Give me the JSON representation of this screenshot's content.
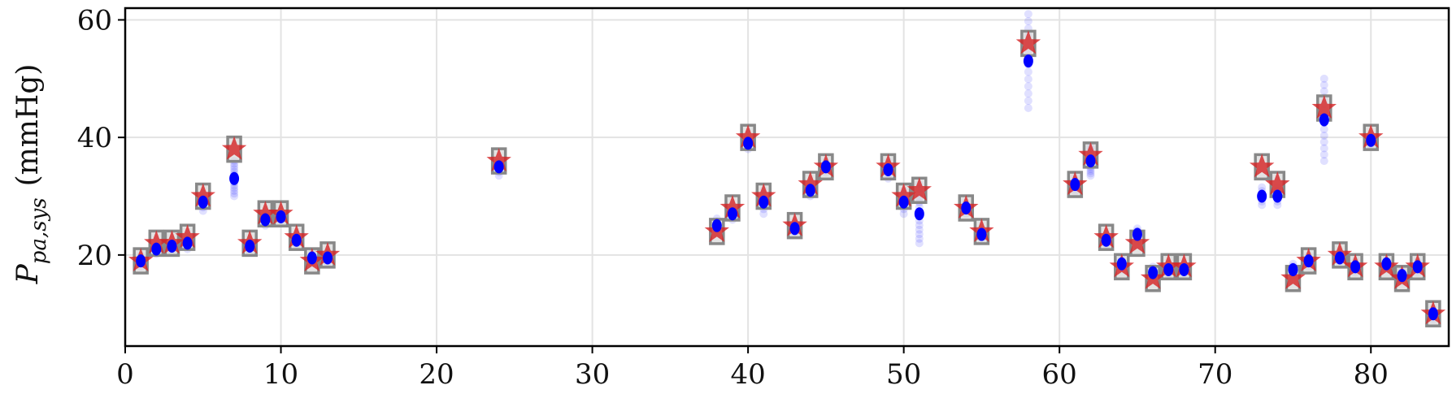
{
  "chart_data": {
    "type": "scatter",
    "title": "",
    "xlabel": "",
    "ylabel": {
      "symbol": "P",
      "subscript": "pa,sys",
      "unit": "(mmHg)"
    },
    "xlim": [
      0,
      85
    ],
    "ylim": [
      4.5,
      62
    ],
    "xticks": [
      0,
      10,
      20,
      30,
      40,
      50,
      60,
      70,
      80
    ],
    "yticks": [
      20,
      40,
      60
    ],
    "grid": true,
    "colors": {
      "measured": "#888888",
      "reference": "#d62728",
      "samples": "#0000ff"
    },
    "series": [
      {
        "marker": "square",
        "points": [
          [
            1,
            19
          ],
          [
            2,
            22
          ],
          [
            3,
            22
          ],
          [
            4,
            23
          ],
          [
            5,
            30
          ],
          [
            7,
            38
          ],
          [
            8,
            22
          ],
          [
            9,
            27
          ],
          [
            10,
            27
          ],
          [
            11,
            23
          ],
          [
            12,
            19
          ],
          [
            13,
            20
          ],
          [
            24,
            36
          ],
          [
            38,
            24
          ],
          [
            39,
            28
          ],
          [
            40,
            40
          ],
          [
            41,
            30
          ],
          [
            43,
            25
          ],
          [
            44,
            32
          ],
          [
            45,
            35
          ],
          [
            49,
            35
          ],
          [
            50,
            30
          ],
          [
            51,
            31
          ],
          [
            54,
            28
          ],
          [
            55,
            24
          ],
          [
            58,
            56
          ],
          [
            61,
            32
          ],
          [
            62,
            37
          ],
          [
            63,
            23
          ],
          [
            64,
            18
          ],
          [
            65,
            22
          ],
          [
            66,
            16
          ],
          [
            67,
            18
          ],
          [
            68,
            18
          ],
          [
            73,
            35
          ],
          [
            74,
            32
          ],
          [
            75,
            16
          ],
          [
            76,
            19
          ],
          [
            77,
            45
          ],
          [
            78,
            20
          ],
          [
            79,
            18
          ],
          [
            80,
            40
          ],
          [
            81,
            18
          ],
          [
            82,
            16
          ],
          [
            83,
            18
          ],
          [
            84,
            10
          ]
        ]
      },
      {
        "marker": "star",
        "points": [
          [
            1,
            19
          ],
          [
            2,
            22
          ],
          [
            3,
            22
          ],
          [
            4,
            23
          ],
          [
            5,
            30
          ],
          [
            7,
            38
          ],
          [
            8,
            22
          ],
          [
            9,
            27
          ],
          [
            10,
            27
          ],
          [
            11,
            23
          ],
          [
            12,
            19
          ],
          [
            13,
            20
          ],
          [
            24,
            36
          ],
          [
            38,
            24
          ],
          [
            39,
            28
          ],
          [
            40,
            40
          ],
          [
            41,
            30
          ],
          [
            43,
            25
          ],
          [
            44,
            32
          ],
          [
            45,
            35
          ],
          [
            49,
            35
          ],
          [
            50,
            30
          ],
          [
            51,
            31
          ],
          [
            54,
            28
          ],
          [
            55,
            24
          ],
          [
            58,
            56
          ],
          [
            61,
            32
          ],
          [
            62,
            37
          ],
          [
            63,
            23
          ],
          [
            64,
            18
          ],
          [
            65,
            22
          ],
          [
            66,
            16
          ],
          [
            67,
            18
          ],
          [
            68,
            18
          ],
          [
            73,
            35
          ],
          [
            74,
            32
          ],
          [
            75,
            16
          ],
          [
            76,
            19
          ],
          [
            77,
            45
          ],
          [
            78,
            20
          ],
          [
            79,
            18
          ],
          [
            80,
            40
          ],
          [
            81,
            18
          ],
          [
            82,
            16
          ],
          [
            83,
            18
          ],
          [
            84,
            10
          ]
        ]
      },
      {
        "marker": "circle",
        "points": [
          [
            1,
            19
          ],
          [
            2,
            21
          ],
          [
            3,
            21.5
          ],
          [
            4,
            22
          ],
          [
            5,
            29
          ],
          [
            7,
            33
          ],
          [
            8,
            21.5
          ],
          [
            9,
            26
          ],
          [
            10,
            26.5
          ],
          [
            11,
            22.5
          ],
          [
            12,
            19.5
          ],
          [
            13,
            19.5
          ],
          [
            24,
            35
          ],
          [
            38,
            25
          ],
          [
            39,
            27
          ],
          [
            40,
            39
          ],
          [
            41,
            29
          ],
          [
            43,
            24.5
          ],
          [
            44,
            31
          ],
          [
            45,
            35
          ],
          [
            49,
            34.5
          ],
          [
            50,
            29
          ],
          [
            51,
            27
          ],
          [
            54,
            28
          ],
          [
            55,
            23.5
          ],
          [
            58,
            53
          ],
          [
            61,
            32
          ],
          [
            62,
            36
          ],
          [
            63,
            22.5
          ],
          [
            64,
            18.5
          ],
          [
            65,
            23.5
          ],
          [
            66,
            17
          ],
          [
            67,
            17.5
          ],
          [
            68,
            17.5
          ],
          [
            73,
            30
          ],
          [
            74,
            30
          ],
          [
            75,
            17.5
          ],
          [
            76,
            19
          ],
          [
            77,
            43
          ],
          [
            78,
            19.5
          ],
          [
            79,
            18
          ],
          [
            80,
            39.5
          ],
          [
            81,
            18.5
          ],
          [
            82,
            16.5
          ],
          [
            83,
            18
          ],
          [
            84,
            10
          ]
        ],
        "spread": [
          [
            1,
            1
          ],
          [
            2,
            0.8
          ],
          [
            3,
            1
          ],
          [
            4,
            1
          ],
          [
            5,
            1.5
          ],
          [
            7,
            3
          ],
          [
            8,
            1
          ],
          [
            9,
            1
          ],
          [
            10,
            1
          ],
          [
            11,
            1
          ],
          [
            12,
            1
          ],
          [
            13,
            1
          ],
          [
            24,
            1.5
          ],
          [
            38,
            1.2
          ],
          [
            39,
            1
          ],
          [
            40,
            1
          ],
          [
            41,
            2
          ],
          [
            43,
            1
          ],
          [
            44,
            1
          ],
          [
            45,
            1
          ],
          [
            49,
            1.5
          ],
          [
            50,
            2
          ],
          [
            51,
            5
          ],
          [
            54,
            1
          ],
          [
            55,
            1
          ],
          [
            58,
            8
          ],
          [
            61,
            1.2
          ],
          [
            62,
            2.5
          ],
          [
            63,
            1
          ],
          [
            64,
            1
          ],
          [
            65,
            1
          ],
          [
            66,
            1
          ],
          [
            67,
            1
          ],
          [
            68,
            1
          ],
          [
            73,
            1.5
          ],
          [
            74,
            1.5
          ],
          [
            75,
            1
          ],
          [
            76,
            1
          ],
          [
            77,
            7
          ],
          [
            78,
            1
          ],
          [
            79,
            1
          ],
          [
            80,
            1
          ],
          [
            81,
            1
          ],
          [
            82,
            1
          ],
          [
            83,
            1
          ],
          [
            84,
            1
          ]
        ]
      }
    ]
  }
}
